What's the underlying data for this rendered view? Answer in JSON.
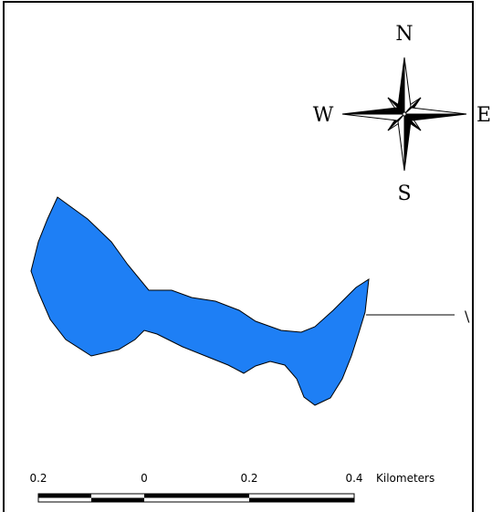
{
  "compass": {
    "north": "N",
    "south": "S",
    "east": "E",
    "west": "W"
  },
  "callout": {
    "label": "\\"
  },
  "scale_bar": {
    "labels": [
      "0.2",
      "0",
      "0.2",
      "0.4"
    ],
    "unit": "Kilometers"
  },
  "colors": {
    "water": "#1e7ff5",
    "outline": "#000000",
    "frame": "#000000",
    "background": "#ffffff"
  }
}
